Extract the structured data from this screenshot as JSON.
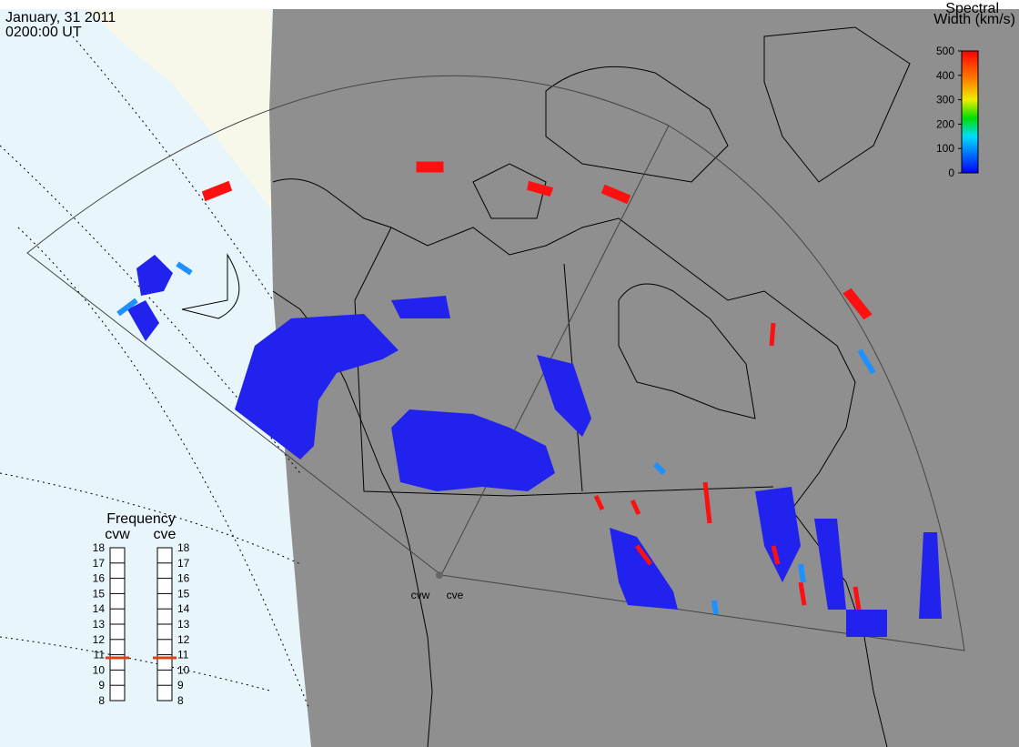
{
  "header": {
    "date": "January, 31 2011",
    "time": "0200:00 UT"
  },
  "colorbar": {
    "title_line1": "Spectral",
    "title_line2": "Width (km/s)",
    "lim": [
      0,
      500
    ],
    "ticks": [
      0,
      100,
      200,
      300,
      400,
      500
    ]
  },
  "frequency": {
    "title": "Frequency",
    "lim": [
      8,
      18
    ],
    "ticks": [
      8,
      9,
      10,
      11,
      12,
      13,
      14,
      15,
      16,
      17,
      18
    ],
    "radars": [
      {
        "name": "cvw",
        "value": 10.8
      },
      {
        "name": "cve",
        "value": 10.8
      }
    ]
  },
  "stations": [
    "cvw",
    "cve"
  ]
}
